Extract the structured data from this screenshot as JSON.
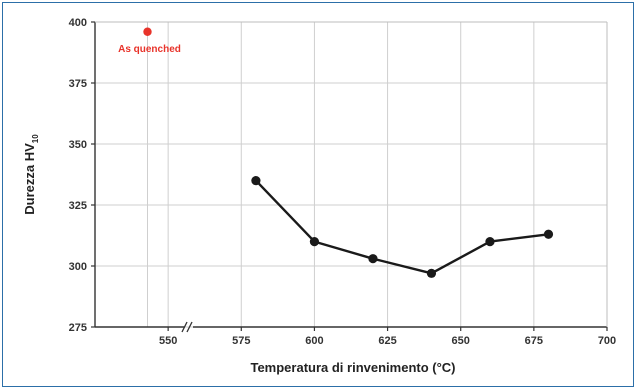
{
  "chart_data": {
    "type": "line",
    "title": "",
    "xlabel": "Temperatura di rinvenimento (°C)",
    "ylabel_main": "Durezza HV",
    "ylabel_sub": "10",
    "xlim": [
      525,
      700
    ],
    "ylim": [
      275,
      400
    ],
    "grid": true,
    "xticks": [
      550,
      575,
      600,
      625,
      650,
      675,
      700
    ],
    "yticks": [
      275,
      300,
      325,
      350,
      375,
      400
    ],
    "axis_break": "between y-axis and 550",
    "series": [
      {
        "x": [
          580,
          600,
          620,
          640,
          660,
          680
        ],
        "y": [
          335,
          310,
          303,
          297,
          310,
          313
        ],
        "color": "#1a1a1a"
      }
    ],
    "annotation": {
      "label": "As quenched",
      "y": 396,
      "color": "#e8332a"
    }
  }
}
